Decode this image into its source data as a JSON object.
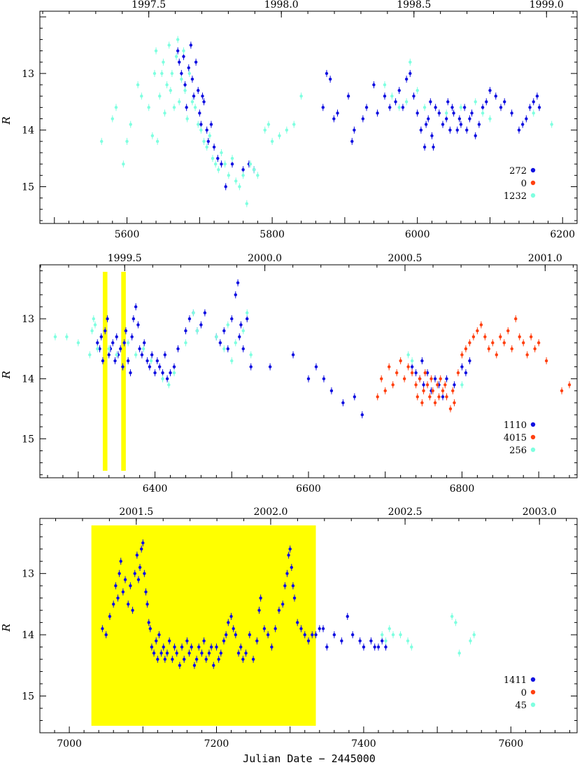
{
  "colors": {
    "blue": "#1010e0",
    "red": "#ff4010",
    "cyan": "#7fffe0",
    "yellow": "#ffff00"
  },
  "xlabel": "Julian Date − 2445000",
  "ylabel": "R",
  "chart_data": [
    {
      "type": "scatter",
      "xlim": [
        5480,
        6220
      ],
      "ylim": [
        11.9,
        15.65
      ],
      "y_inverted": true,
      "yticks": [
        "13",
        "14",
        "15"
      ],
      "xticks": [
        "5600",
        "5800",
        "6000",
        "6200"
      ],
      "top_ticks": [
        "1997.5",
        "1998.0",
        "1998.5",
        "1999.0"
      ],
      "highlight_bands": [],
      "legend": [
        {
          "label": "272",
          "color": "blue"
        },
        {
          "label": "0",
          "color": "red"
        },
        {
          "label": "1232",
          "color": "cyan"
        }
      ],
      "series": [
        {
          "color": "blue",
          "x": [
            5670,
            5672,
            5675,
            5678,
            5680,
            5682,
            5685,
            5688,
            5690,
            5692,
            5695,
            5698,
            5700,
            5702,
            5704,
            5706,
            5710,
            5712,
            5716,
            5720,
            5725,
            5730,
            5736,
            5745,
            5760,
            5768,
            5775,
            5870,
            5875,
            5880,
            5885,
            5890,
            5905,
            5910,
            5913,
            5925,
            5930,
            5940,
            5945,
            5955,
            5962,
            5970,
            5975,
            5980,
            5985,
            5990,
            5995,
            6000,
            6005,
            6010,
            6012,
            6015,
            6018,
            6020,
            6022,
            6025,
            6030,
            6035,
            6040,
            6042,
            6045,
            6048,
            6050,
            6055,
            6058,
            6060,
            6065,
            6068,
            6072,
            6075,
            6080,
            6085,
            6090,
            6095,
            6100,
            6108,
            6115,
            6120,
            6130,
            6140,
            6145,
            6150,
            6155,
            6160,
            6165,
            6168
          ],
          "y": [
            12.6,
            12.8,
            13.0,
            12.7,
            13.2,
            13.6,
            12.9,
            12.5,
            13.1,
            13.4,
            12.8,
            13.3,
            13.7,
            13.9,
            13.4,
            13.5,
            14.0,
            14.2,
            13.9,
            14.3,
            14.5,
            14.6,
            15.0,
            14.6,
            14.7,
            14.6,
            14.7,
            13.6,
            13.0,
            13.1,
            13.8,
            13.7,
            13.4,
            14.2,
            14.0,
            13.8,
            13.6,
            13.2,
            13.7,
            13.4,
            13.6,
            13.5,
            13.3,
            13.6,
            13.1,
            13.0,
            13.4,
            13.7,
            14.0,
            14.3,
            13.9,
            13.8,
            13.5,
            14.1,
            14.3,
            13.6,
            13.7,
            13.9,
            13.8,
            13.5,
            14.0,
            13.6,
            13.7,
            14.0,
            13.8,
            13.9,
            13.6,
            14.0,
            13.8,
            13.7,
            14.1,
            13.9,
            13.6,
            13.5,
            13.3,
            13.4,
            13.6,
            13.5,
            13.7,
            14.0,
            13.9,
            13.8,
            13.6,
            13.5,
            13.4,
            13.6
          ]
        },
        {
          "color": "red",
          "x": [],
          "y": []
        },
        {
          "color": "cyan",
          "x": [
            5565,
            5580,
            5585,
            5595,
            5600,
            5605,
            5615,
            5620,
            5630,
            5635,
            5638,
            5640,
            5642,
            5645,
            5648,
            5650,
            5652,
            5655,
            5658,
            5660,
            5662,
            5665,
            5668,
            5670,
            5672,
            5675,
            5678,
            5680,
            5683,
            5686,
            5690,
            5694,
            5698,
            5702,
            5706,
            5710,
            5714,
            5718,
            5722,
            5726,
            5730,
            5735,
            5740,
            5745,
            5750,
            5755,
            5760,
            5765,
            5770,
            5775,
            5780,
            5790,
            5795,
            5800,
            5810,
            5820,
            5830,
            5840,
            5955,
            5965,
            5975,
            5985,
            5990,
            6000,
            6010,
            6040,
            6060,
            6080,
            6090,
            6100,
            6160,
            6185
          ],
          "y": [
            14.2,
            13.8,
            13.6,
            14.6,
            14.2,
            13.9,
            13.2,
            13.4,
            13.6,
            14.1,
            13.0,
            12.6,
            14.2,
            13.4,
            13.0,
            12.8,
            13.7,
            13.2,
            12.5,
            13.3,
            13.0,
            13.6,
            12.7,
            12.4,
            13.5,
            13.1,
            12.6,
            13.3,
            13.8,
            13.0,
            13.5,
            13.6,
            13.9,
            14.0,
            14.2,
            14.3,
            14.1,
            14.5,
            14.6,
            14.7,
            14.4,
            14.6,
            14.8,
            14.5,
            14.9,
            15.0,
            14.8,
            15.3,
            14.6,
            14.7,
            14.8,
            14.0,
            13.9,
            14.2,
            14.1,
            14.0,
            13.9,
            13.4,
            13.2,
            13.4,
            13.6,
            13.5,
            12.8,
            13.3,
            13.6,
            13.7,
            13.6,
            13.5,
            13.7,
            13.8,
            13.7,
            13.9
          ]
        }
      ]
    },
    {
      "type": "scatter",
      "xlim": [
        6250,
        6950
      ],
      "ylim": [
        12.1,
        15.65
      ],
      "y_inverted": true,
      "yticks": [
        "13",
        "14",
        "15"
      ],
      "xticks": [
        "6400",
        "6600",
        "6800"
      ],
      "top_ticks": [
        "1999.5",
        "2000.0",
        "2000.5",
        "2001.0"
      ],
      "highlight_bands": [
        [
          6332,
          6338
        ],
        [
          6356,
          6362
        ]
      ],
      "legend": [
        {
          "label": "1110",
          "color": "blue"
        },
        {
          "label": "4015",
          "color": "red"
        },
        {
          "label": "256",
          "color": "cyan"
        }
      ],
      "series": [
        {
          "color": "blue",
          "x": [
            6325,
            6328,
            6330,
            6332,
            6335,
            6338,
            6340,
            6342,
            6345,
            6348,
            6350,
            6352,
            6355,
            6358,
            6360,
            6362,
            6365,
            6368,
            6370,
            6372,
            6375,
            6378,
            6380,
            6383,
            6386,
            6390,
            6393,
            6396,
            6400,
            6403,
            6406,
            6410,
            6413,
            6416,
            6420,
            6425,
            6430,
            6440,
            6445,
            6450,
            6455,
            6460,
            6465,
            6480,
            6485,
            6490,
            6495,
            6500,
            6505,
            6508,
            6510,
            6512,
            6515,
            6520,
            6525,
            6550,
            6580,
            6600,
            6610,
            6620,
            6630,
            6645,
            6660,
            6670,
            6735,
            6740,
            6745,
            6748,
            6750,
            6755,
            6760,
            6765,
            6770,
            6775,
            6780,
            6790,
            6800,
            6805,
            6810
          ],
          "y": [
            13.4,
            13.5,
            13.3,
            13.7,
            13.2,
            13.0,
            13.6,
            13.5,
            13.4,
            13.7,
            13.3,
            13.6,
            13.5,
            13.8,
            13.4,
            13.2,
            13.7,
            13.9,
            13.3,
            13.0,
            12.8,
            13.1,
            13.5,
            13.6,
            13.4,
            13.7,
            13.8,
            13.6,
            13.9,
            13.7,
            13.8,
            13.9,
            13.6,
            14.0,
            13.9,
            13.8,
            13.5,
            13.2,
            13.0,
            12.9,
            13.2,
            13.1,
            12.9,
            13.3,
            13.4,
            13.2,
            13.5,
            13.0,
            12.6,
            12.4,
            13.3,
            13.1,
            13.5,
            13.0,
            13.8,
            13.8,
            13.6,
            14.0,
            13.8,
            14.0,
            14.2,
            14.4,
            14.3,
            14.6,
            13.8,
            13.9,
            14.0,
            13.7,
            14.1,
            13.9,
            14.2,
            14.0,
            14.1,
            14.3,
            14.0,
            14.1,
            13.8,
            13.9,
            13.7
          ]
        },
        {
          "color": "red",
          "x": [
            6690,
            6695,
            6700,
            6705,
            6710,
            6715,
            6720,
            6725,
            6730,
            6735,
            6740,
            6742,
            6745,
            6748,
            6750,
            6752,
            6755,
            6758,
            6760,
            6762,
            6765,
            6768,
            6770,
            6772,
            6775,
            6778,
            6780,
            6785,
            6788,
            6790,
            6795,
            6800,
            6805,
            6810,
            6815,
            6820,
            6825,
            6830,
            6835,
            6840,
            6845,
            6850,
            6855,
            6860,
            6865,
            6870,
            6875,
            6880,
            6885,
            6890,
            6895,
            6900,
            6910,
            6930,
            6940
          ],
          "y": [
            14.3,
            14.0,
            14.2,
            13.8,
            14.1,
            13.9,
            13.7,
            14.0,
            13.8,
            13.9,
            14.1,
            14.3,
            14.0,
            14.4,
            14.2,
            13.9,
            14.1,
            14.3,
            14.0,
            14.2,
            14.4,
            14.1,
            14.3,
            14.0,
            14.2,
            14.1,
            14.3,
            14.5,
            14.2,
            14.4,
            13.9,
            13.6,
            13.5,
            13.4,
            13.3,
            13.2,
            13.1,
            13.3,
            13.5,
            13.4,
            13.6,
            13.3,
            13.4,
            13.2,
            13.5,
            13.0,
            13.3,
            13.4,
            13.6,
            13.3,
            13.5,
            13.4,
            13.7,
            14.2,
            14.1
          ]
        },
        {
          "color": "cyan",
          "x": [
            6270,
            6285,
            6300,
            6315,
            6318,
            6320,
            6322,
            6325,
            6340,
            6350,
            6365,
            6375,
            6385,
            6395,
            6410,
            6418,
            6425,
            6440,
            6450,
            6455,
            6480,
            6490,
            6495,
            6500,
            6505,
            6515,
            6520,
            6525,
            6730,
            6735,
            6800
          ],
          "y": [
            13.3,
            13.3,
            13.4,
            13.6,
            13.2,
            13.0,
            13.1,
            13.5,
            13.5,
            13.6,
            13.4,
            13.6,
            13.5,
            13.7,
            14.0,
            14.1,
            13.9,
            13.4,
            12.9,
            13.2,
            13.3,
            13.5,
            13.1,
            13.7,
            13.4,
            13.2,
            12.9,
            13.6,
            13.6,
            13.7,
            14.1
          ]
        }
      ]
    },
    {
      "type": "scatter",
      "xlim": [
        6960,
        7690
      ],
      "ylim": [
        12.1,
        15.6
      ],
      "y_inverted": true,
      "yticks": [
        "13",
        "14",
        "15"
      ],
      "xticks": [
        "7000",
        "7200",
        "7400",
        "7600"
      ],
      "top_ticks": [
        "2001.5",
        "2002.0",
        "2002.5",
        "2003.0"
      ],
      "highlight_bands": [
        [
          7030,
          7335
        ]
      ],
      "legend": [
        {
          "label": "1411",
          "color": "blue"
        },
        {
          "label": "0",
          "color": "red"
        },
        {
          "label": "45",
          "color": "cyan"
        }
      ],
      "series": [
        {
          "color": "blue",
          "x": [
            7045,
            7050,
            7055,
            7060,
            7063,
            7066,
            7068,
            7070,
            7073,
            7076,
            7080,
            7083,
            7086,
            7089,
            7092,
            7094,
            7096,
            7098,
            7100,
            7102,
            7104,
            7106,
            7108,
            7110,
            7112,
            7115,
            7118,
            7120,
            7122,
            7125,
            7128,
            7130,
            7133,
            7136,
            7140,
            7143,
            7146,
            7150,
            7153,
            7156,
            7160,
            7163,
            7166,
            7170,
            7173,
            7176,
            7180,
            7183,
            7186,
            7190,
            7193,
            7196,
            7200,
            7203,
            7206,
            7210,
            7213,
            7216,
            7220,
            7223,
            7226,
            7230,
            7233,
            7236,
            7240,
            7245,
            7250,
            7255,
            7258,
            7260,
            7265,
            7270,
            7275,
            7280,
            7285,
            7290,
            7293,
            7296,
            7298,
            7300,
            7302,
            7304,
            7306,
            7310,
            7315,
            7320,
            7325,
            7330,
            7335,
            7340,
            7345,
            7350,
            7360,
            7370,
            7378,
            7385,
            7395,
            7400,
            7410,
            7415,
            7420,
            7425,
            7430
          ],
          "y": [
            13.9,
            14.0,
            13.7,
            13.5,
            13.2,
            13.4,
            13.0,
            12.8,
            13.3,
            13.1,
            13.5,
            13.2,
            13.6,
            13.0,
            12.7,
            13.1,
            12.9,
            12.6,
            12.5,
            13.0,
            13.3,
            13.5,
            13.8,
            13.9,
            14.2,
            14.3,
            14.1,
            14.4,
            14.0,
            14.3,
            14.2,
            14.4,
            14.3,
            14.1,
            14.4,
            14.2,
            14.3,
            14.5,
            14.2,
            14.4,
            14.1,
            14.3,
            14.2,
            14.5,
            14.4,
            14.2,
            14.3,
            14.1,
            14.4,
            14.3,
            14.2,
            14.5,
            14.2,
            14.4,
            14.3,
            14.1,
            14.0,
            13.8,
            13.7,
            13.9,
            14.0,
            14.3,
            14.2,
            14.4,
            14.3,
            14.0,
            14.4,
            14.1,
            13.6,
            13.4,
            13.9,
            14.0,
            14.2,
            13.9,
            13.6,
            13.5,
            13.2,
            13.0,
            12.7,
            12.6,
            12.9,
            13.2,
            13.4,
            13.8,
            13.9,
            14.0,
            14.1,
            14.0,
            14.0,
            13.9,
            13.9,
            14.2,
            14.0,
            14.1,
            13.7,
            14.0,
            14.1,
            14.2,
            14.1,
            14.2,
            14.2,
            14.1,
            14.2
          ]
        },
        {
          "color": "red",
          "x": [],
          "y": []
        },
        {
          "color": "cyan",
          "x": [
            7425,
            7430,
            7435,
            7440,
            7450,
            7460,
            7465,
            7520,
            7525,
            7530,
            7545,
            7550
          ],
          "y": [
            14.0,
            14.1,
            13.9,
            14.0,
            14.0,
            14.1,
            14.2,
            13.7,
            13.8,
            14.3,
            14.1,
            14.0
          ]
        }
      ]
    }
  ]
}
